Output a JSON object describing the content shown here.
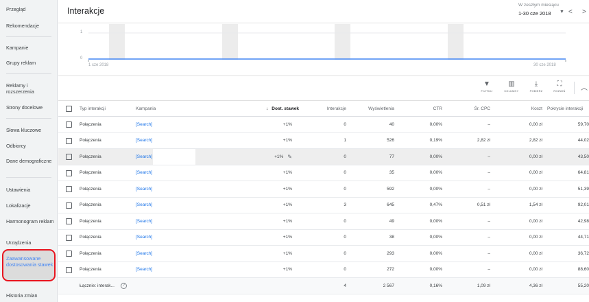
{
  "sidebar": {
    "items": [
      {
        "label": "Przegląd"
      },
      {
        "label": "Rekomendacje"
      },
      {
        "label": "Kampanie"
      },
      {
        "label": "Grupy reklam"
      },
      {
        "label": "Reklamy i rozszerzenia"
      },
      {
        "label": "Strony docelowe"
      },
      {
        "label": "Słowa kluczowe"
      },
      {
        "label": "Odbiorcy"
      },
      {
        "label": "Dane demograficzne"
      },
      {
        "label": "Ustawienia"
      },
      {
        "label": "Lokalizacje"
      },
      {
        "label": "Harmonogram reklam"
      },
      {
        "label": "Urządzenia"
      },
      {
        "label": "Zaawansowane dostosowania stawek"
      },
      {
        "label": "Historia zmian"
      }
    ]
  },
  "header": {
    "title": "Interakcje",
    "period_label": "W zeszłym miesiącu",
    "period_value": "1-30 cze 2018"
  },
  "chart": {
    "y_tick_top": "1",
    "y_tick_bottom": "0",
    "x_start_label": "1 cze 2018",
    "x_end_label": "30 cze 2018",
    "line_color": "#4285f4"
  },
  "toolbar": {
    "filter": "FILTRUJ",
    "columns": "KOLUMNY",
    "download": "POBIERZ",
    "expand": "ROZWIŃ"
  },
  "table": {
    "headers": {
      "type": "Typ interakcji",
      "campaign": "Kampania",
      "bid_adj": "Dost. stawek",
      "interactions": "Interakcje",
      "impressions": "Wyświetlenia",
      "ctr": "CTR",
      "avg_cpc": "Śr. CPC",
      "cost": "Koszt",
      "coverage": "Pokrycie interakcji"
    },
    "rows": [
      {
        "type": "Połączenia",
        "campaign": "[Search] '",
        "bid": "+1%",
        "interactions": "0",
        "impressions": "40",
        "ctr": "0,00%",
        "cpc": "–",
        "cost": "0,00 zł",
        "cov": "59,70"
      },
      {
        "type": "Połączenia",
        "campaign": "[Search] '",
        "bid": "+1%",
        "interactions": "1",
        "impressions": "526",
        "ctr": "0,19%",
        "cpc": "2,82 zł",
        "cost": "2,82 zł",
        "cov": "44,02"
      },
      {
        "type": "Połączenia",
        "campaign": "[Search] I",
        "bid": "+1%",
        "interactions": "0",
        "impressions": "77",
        "ctr": "0,00%",
        "cpc": "–",
        "cost": "0,00 zł",
        "cov": "43,50"
      },
      {
        "type": "Połączenia",
        "campaign": "[Search] I",
        "bid": "+1%",
        "interactions": "0",
        "impressions": "35",
        "ctr": "0,00%",
        "cpc": "–",
        "cost": "0,00 zł",
        "cov": "64,81"
      },
      {
        "type": "Połączenia",
        "campaign": "[Search] I",
        "bid": "+1%",
        "interactions": "0",
        "impressions": "592",
        "ctr": "0,00%",
        "cpc": "–",
        "cost": "0,00 zł",
        "cov": "51,39"
      },
      {
        "type": "Połączenia",
        "campaign": "[Search] I",
        "bid": "+1%",
        "interactions": "3",
        "impressions": "645",
        "ctr": "0,47%",
        "cpc": "0,51 zł",
        "cost": "1,54 zł",
        "cov": "92,01"
      },
      {
        "type": "Połączenia",
        "campaign": "[Search] I",
        "bid": "+1%",
        "interactions": "0",
        "impressions": "49",
        "ctr": "0,00%",
        "cpc": "–",
        "cost": "0,00 zł",
        "cov": "42,98"
      },
      {
        "type": "Połączenia",
        "campaign": "[Search] I",
        "bid": "+1%",
        "interactions": "0",
        "impressions": "38",
        "ctr": "0,00%",
        "cpc": "–",
        "cost": "0,00 zł",
        "cov": "44,71"
      },
      {
        "type": "Połączenia",
        "campaign": "[Search] I",
        "bid": "+1%",
        "interactions": "0",
        "impressions": "293",
        "ctr": "0,00%",
        "cpc": "–",
        "cost": "0,00 zł",
        "cov": "36,72"
      },
      {
        "type": "Połączenia",
        "campaign": "[Search] I",
        "bid": "+1%",
        "interactions": "0",
        "impressions": "272",
        "ctr": "0,00%",
        "cpc": "–",
        "cost": "0,00 zł",
        "cov": "88,60"
      }
    ],
    "total": {
      "label": "Łącznie: interak...",
      "interactions": "4",
      "impressions": "2 567",
      "ctr": "0,16%",
      "cpc": "1,09 zł",
      "cost": "4,36 zł",
      "cov": "55,20"
    }
  }
}
